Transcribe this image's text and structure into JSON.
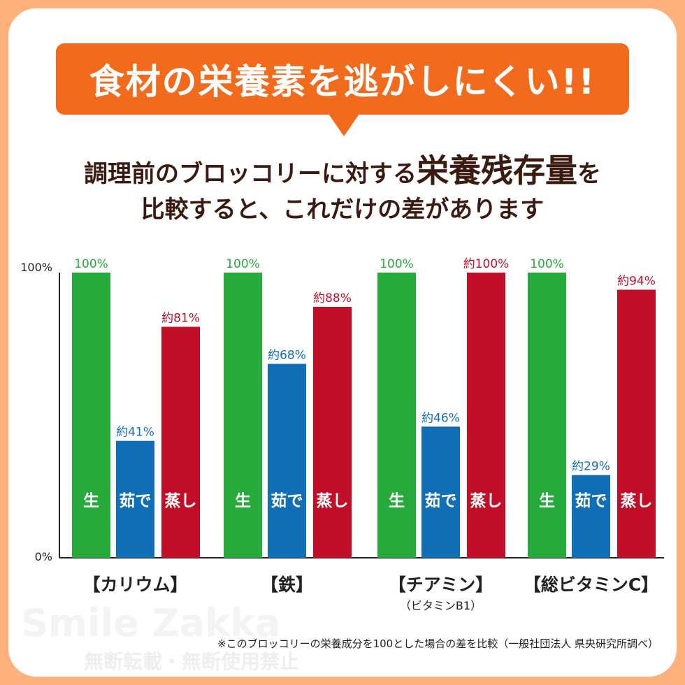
{
  "banner": "食材の栄養素を逃がしにくい!!",
  "subtitle": {
    "line1_pre": "調理前のブロッコリーに対する",
    "line1_big": "栄養残存量",
    "line1_post": "を",
    "line2": "比較すると、これだけの差があります"
  },
  "watermark": {
    "text": "Smile Zakka",
    "notice": "無断転載・無断使用禁止"
  },
  "note": "※このブロッコリーの栄養成分を100とした場合の差を比較（一般社団法人 県央研究所調べ）",
  "colors": {
    "raw": "#26AA3B",
    "boiled": "#116FB8",
    "steamed": "#C20F27",
    "banner": "#F26A1B",
    "frame": "#FFB17C"
  },
  "chart_data": {
    "type": "bar",
    "categories": [
      "【カリウム】",
      "【鉄】",
      "【チアミン】",
      "【総ビタミンC】"
    ],
    "category_sublabels": [
      "",
      "",
      "（ビタミンB1）",
      ""
    ],
    "series": [
      {
        "name": "生",
        "values": [
          100,
          100,
          100,
          100
        ],
        "labels": [
          "100%",
          "100%",
          "100%",
          "100%"
        ]
      },
      {
        "name": "茹で",
        "values": [
          41,
          68,
          46,
          29
        ],
        "labels": [
          "約41%",
          "約68%",
          "約46%",
          "約29%"
        ]
      },
      {
        "name": "蒸し",
        "values": [
          81,
          88,
          100,
          94
        ],
        "labels": [
          "約81%",
          "約88%",
          "約100%",
          "約94%"
        ]
      }
    ],
    "ylim": [
      0,
      100
    ],
    "yticks": [
      "0%",
      "100%"
    ],
    "grid": false
  }
}
